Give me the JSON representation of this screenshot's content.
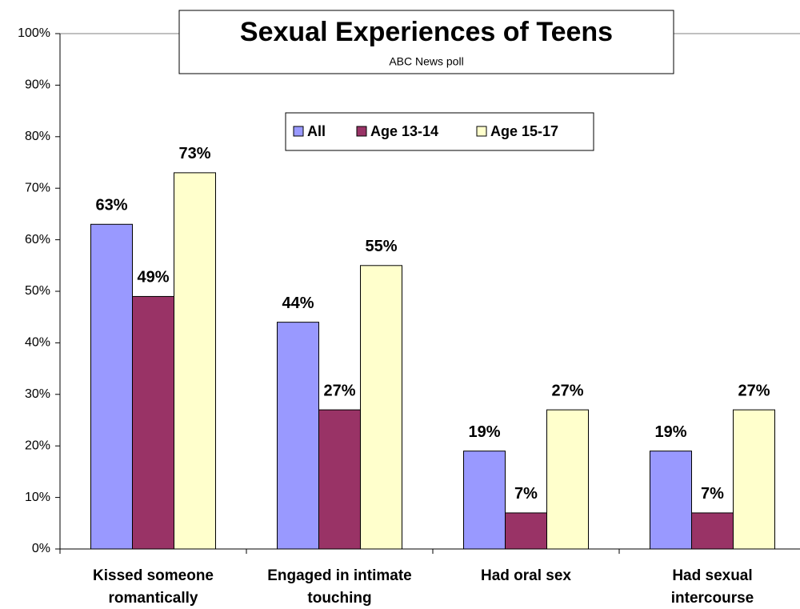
{
  "chart_data": {
    "type": "bar",
    "title": "Sexual Experiences of Teens",
    "subtitle": "ABC News poll",
    "categories": [
      "Kissed someone romantically",
      "Engaged in intimate touching",
      "Had oral sex",
      "Had sexual intercourse"
    ],
    "series": [
      {
        "name": "All",
        "color": "#9999ff",
        "values": [
          63,
          44,
          19,
          19
        ],
        "value_labels": [
          "63%",
          "44%",
          "19%",
          "19%"
        ]
      },
      {
        "name": "Age 13-14",
        "color": "#993366",
        "values": [
          49,
          27,
          7,
          7
        ],
        "value_labels": [
          "49%",
          "27%",
          "7%",
          "7%"
        ]
      },
      {
        "name": "Age 15-17",
        "color": "#ffffcc",
        "values": [
          73,
          55,
          27,
          27
        ],
        "value_labels": [
          "73%",
          "55%",
          "27%",
          "27%"
        ]
      }
    ],
    "ylim": [
      0,
      100
    ],
    "yticks": [
      {
        "value": 0,
        "label": "0%"
      },
      {
        "value": 10,
        "label": "10%"
      },
      {
        "value": 20,
        "label": "20%"
      },
      {
        "value": 30,
        "label": "30%"
      },
      {
        "value": 40,
        "label": "40%"
      },
      {
        "value": 50,
        "label": "50%"
      },
      {
        "value": 60,
        "label": "60%"
      },
      {
        "value": 70,
        "label": "70%"
      },
      {
        "value": 80,
        "label": "80%"
      },
      {
        "value": 90,
        "label": "90%"
      },
      {
        "value": 100,
        "label": "100%"
      }
    ],
    "grid": false,
    "legend": "top"
  }
}
